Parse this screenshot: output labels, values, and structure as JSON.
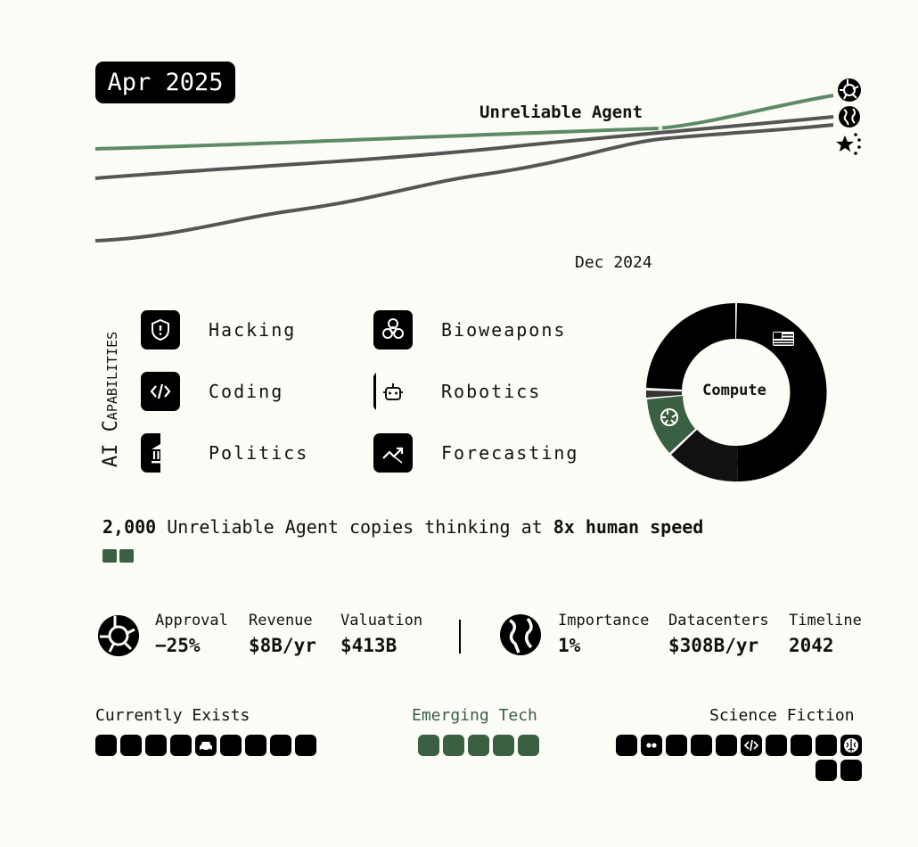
{
  "header": {
    "date": "Apr 2025"
  },
  "trend": {
    "label": "Unreliable Agent",
    "xtick": "Dec 2024",
    "series_icons": [
      "openai-logo-icon",
      "globe-icon",
      "china-stars-icon"
    ],
    "colors": {
      "green": "#5f8a69",
      "gray": "#555555"
    }
  },
  "capabilities": {
    "title": "AI Capabilities",
    "items": [
      {
        "name": "hacking",
        "label": "Hacking",
        "icon": "shield-icon",
        "progress": 1.0
      },
      {
        "name": "bioweapons",
        "label": "Bioweapons",
        "icon": "biohazard-icon",
        "progress": 1.0
      },
      {
        "name": "coding",
        "label": "Coding",
        "icon": "code-icon",
        "progress": 1.0
      },
      {
        "name": "robotics",
        "label": "Robotics",
        "icon": "robot-icon",
        "progress": 0.05
      },
      {
        "name": "politics",
        "label": "Politics",
        "icon": "government-building-icon",
        "progress": 0.5
      },
      {
        "name": "forecasting",
        "label": "Forecasting",
        "icon": "trend-icon",
        "progress": 1.0
      }
    ]
  },
  "compute": {
    "label": "Compute",
    "icons": [
      "us-flag-icon",
      "openai-logo-icon"
    ]
  },
  "agents": {
    "count": "2,000",
    "middle": " Unreliable Agent copies thinking at ",
    "speed": "8x human speed"
  },
  "stats": {
    "company": {
      "icon": "openai-logo-icon",
      "items": [
        {
          "label": "Approval",
          "value": "−25%"
        },
        {
          "label": "Revenue",
          "value": "$8B/yr"
        },
        {
          "label": "Valuation",
          "value": "$413B"
        }
      ]
    },
    "world": {
      "icon": "globe-icon",
      "items": [
        {
          "label": "Importance",
          "value": "1%"
        },
        {
          "label": "Datacenters",
          "value": "$308B/yr"
        },
        {
          "label": "Timeline",
          "value": "2042"
        }
      ]
    }
  },
  "tech": {
    "current": {
      "label": "Currently Exists",
      "chips": 9,
      "icons": {
        "4": "car-icon"
      }
    },
    "emerging": {
      "label": "Emerging Tech",
      "chips": 5
    },
    "fiction": {
      "label": "Science Fiction",
      "chips": 12,
      "icons": {
        "1": "dots-icon",
        "5": "code-icon",
        "9": "brain-icon"
      }
    }
  }
}
